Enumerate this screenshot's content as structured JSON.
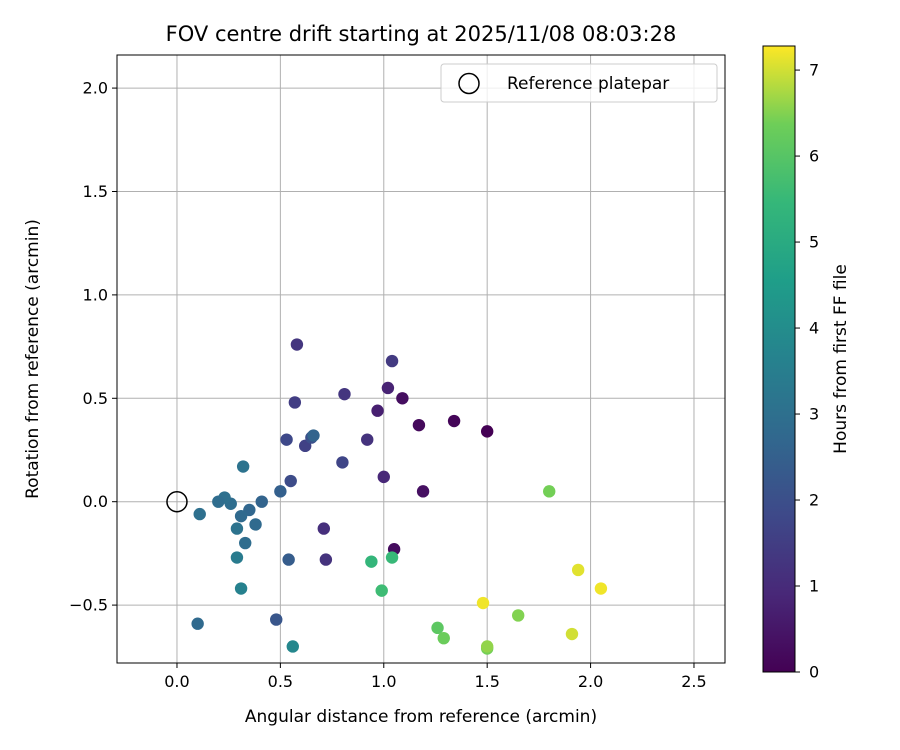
{
  "chart_data": {
    "type": "scatter",
    "title": "FOV centre drift starting at 2025/11/08 08:03:28",
    "xlabel": "Angular distance from reference (arcmin)",
    "ylabel": "Rotation from reference (arcmin)",
    "xlim": [
      -0.29,
      2.65
    ],
    "ylim": [
      -0.78,
      2.16
    ],
    "xticks": [
      0.0,
      0.5,
      1.0,
      1.5,
      2.0,
      2.5
    ],
    "xtick_labels": [
      "0.0",
      "0.5",
      "1.0",
      "1.5",
      "2.0",
      "2.5"
    ],
    "yticks": [
      -0.5,
      0.0,
      0.5,
      1.0,
      1.5,
      2.0
    ],
    "ytick_labels": [
      "−0.5",
      "0.0",
      "0.5",
      "1.0",
      "1.5",
      "2.0"
    ],
    "grid": true,
    "legend": {
      "location": "top-right",
      "entries": [
        "Reference platepar"
      ]
    },
    "reference_point": {
      "x": 0.0,
      "y": 0.0,
      "label": "Reference platepar"
    },
    "colorbar": {
      "label": "Hours from first FF file",
      "colormap": "viridis",
      "range": [
        0,
        7.28
      ],
      "ticks": [
        0,
        1,
        2,
        3,
        4,
        5,
        6,
        7
      ],
      "tick_labels": [
        "0",
        "1",
        "2",
        "3",
        "4",
        "5",
        "6",
        "7"
      ]
    },
    "points": [
      {
        "x": 1.5,
        "y": 0.34,
        "hours": 0.0
      },
      {
        "x": 1.34,
        "y": 0.39,
        "hours": 0.1
      },
      {
        "x": 1.17,
        "y": 0.37,
        "hours": 0.2
      },
      {
        "x": 1.09,
        "y": 0.5,
        "hours": 0.3
      },
      {
        "x": 1.19,
        "y": 0.05,
        "hours": 0.35
      },
      {
        "x": 1.05,
        "y": -0.23,
        "hours": 0.25
      },
      {
        "x": 0.97,
        "y": 0.44,
        "hours": 0.7
      },
      {
        "x": 1.02,
        "y": 0.55,
        "hours": 0.8
      },
      {
        "x": 1.0,
        "y": 0.12,
        "hours": 0.9
      },
      {
        "x": 1.04,
        "y": 0.68,
        "hours": 1.4
      },
      {
        "x": 0.81,
        "y": 0.52,
        "hours": 1.3
      },
      {
        "x": 0.92,
        "y": 0.3,
        "hours": 1.2
      },
      {
        "x": 0.71,
        "y": -0.13,
        "hours": 1.1
      },
      {
        "x": 0.72,
        "y": -0.28,
        "hours": 1.2
      },
      {
        "x": 0.58,
        "y": 0.76,
        "hours": 1.3
      },
      {
        "x": 0.57,
        "y": 0.48,
        "hours": 1.5
      },
      {
        "x": 0.62,
        "y": 0.27,
        "hours": 1.6
      },
      {
        "x": 0.8,
        "y": 0.19,
        "hours": 1.7
      },
      {
        "x": 0.53,
        "y": 0.3,
        "hours": 1.8
      },
      {
        "x": 0.55,
        "y": 0.1,
        "hours": 1.9
      },
      {
        "x": 0.65,
        "y": 0.31,
        "hours": 2.0
      },
      {
        "x": 0.48,
        "y": -0.57,
        "hours": 2.2
      },
      {
        "x": 0.5,
        "y": 0.05,
        "hours": 2.5
      },
      {
        "x": 0.54,
        "y": -0.28,
        "hours": 2.4
      },
      {
        "x": 0.66,
        "y": 0.32,
        "hours": 2.6
      },
      {
        "x": 0.41,
        "y": 0.0,
        "hours": 2.6
      },
      {
        "x": 0.35,
        "y": -0.04,
        "hours": 2.7
      },
      {
        "x": 0.38,
        "y": -0.11,
        "hours": 2.8
      },
      {
        "x": 0.33,
        "y": -0.2,
        "hours": 2.9
      },
      {
        "x": 0.31,
        "y": -0.07,
        "hours": 2.8
      },
      {
        "x": 0.26,
        "y": -0.01,
        "hours": 2.9
      },
      {
        "x": 0.23,
        "y": 0.02,
        "hours": 3.0
      },
      {
        "x": 0.2,
        "y": 0.0,
        "hours": 2.9
      },
      {
        "x": 0.29,
        "y": -0.13,
        "hours": 3.1
      },
      {
        "x": 0.32,
        "y": 0.17,
        "hours": 3.1
      },
      {
        "x": 0.11,
        "y": -0.06,
        "hours": 3.0
      },
      {
        "x": 0.1,
        "y": -0.59,
        "hours": 2.8
      },
      {
        "x": 0.29,
        "y": -0.27,
        "hours": 3.4
      },
      {
        "x": 0.31,
        "y": -0.42,
        "hours": 3.6
      },
      {
        "x": 0.56,
        "y": -0.7,
        "hours": 3.8
      },
      {
        "x": 0.94,
        "y": -0.29,
        "hours": 5.4
      },
      {
        "x": 1.04,
        "y": -0.27,
        "hours": 5.5
      },
      {
        "x": 0.99,
        "y": -0.43,
        "hours": 5.6
      },
      {
        "x": 1.26,
        "y": -0.61,
        "hours": 6.1
      },
      {
        "x": 1.29,
        "y": -0.66,
        "hours": 6.3
      },
      {
        "x": 1.5,
        "y": -0.71,
        "hours": 6.4
      },
      {
        "x": 1.65,
        "y": -0.55,
        "hours": 6.5
      },
      {
        "x": 1.8,
        "y": 0.05,
        "hours": 6.4
      },
      {
        "x": 1.5,
        "y": -0.7,
        "hours": 6.6
      },
      {
        "x": 1.48,
        "y": -0.49,
        "hours": 7.2
      },
      {
        "x": 1.91,
        "y": -0.64,
        "hours": 7.0
      },
      {
        "x": 1.94,
        "y": -0.33,
        "hours": 7.1
      },
      {
        "x": 2.05,
        "y": -0.42,
        "hours": 7.2
      }
    ]
  }
}
